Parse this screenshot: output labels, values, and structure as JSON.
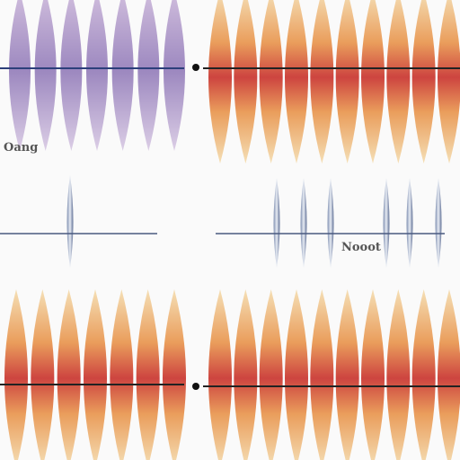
{
  "labels": {
    "left": "Oang",
    "right": "Nooot"
  }
}
